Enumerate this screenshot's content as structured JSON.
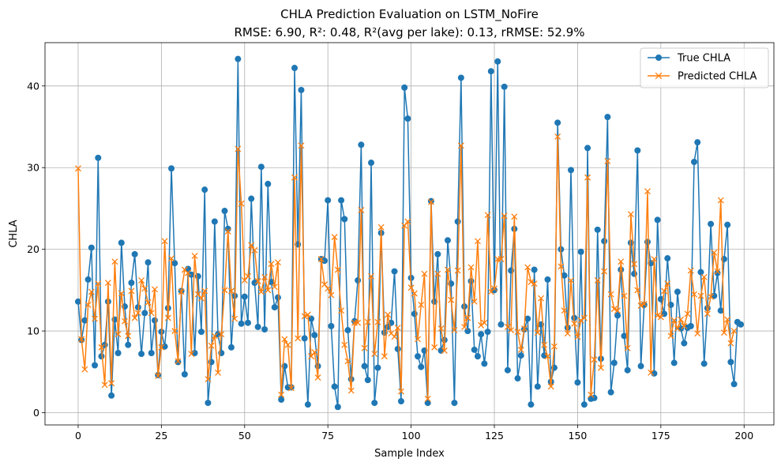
{
  "chart_data": {
    "type": "line",
    "title": "CHLA Prediction Evaluation on LSTM_NoFire",
    "subtitle": "RMSE: 6.90, R²: 0.48, R²(avg per lake): 0.13, rRMSE: 52.9%",
    "xlabel": "Sample Index",
    "ylabel": "CHLA",
    "xlim": [
      -9.95,
      208.95
    ],
    "ylim": [
      -1.5,
      45.3
    ],
    "xticks": [
      0,
      25,
      50,
      75,
      100,
      125,
      150,
      175,
      200
    ],
    "yticks": [
      0,
      10,
      20,
      30,
      40
    ],
    "grid": true,
    "legend_position": "upper right",
    "colors": {
      "true": "#1f77b4",
      "pred": "#ff7f0e"
    },
    "series": [
      {
        "name": "True CHLA",
        "marker": "circle",
        "values": [
          13.6,
          8.9,
          11.3,
          16.3,
          20.2,
          5.8,
          31.2,
          6.9,
          8.3,
          13.6,
          2.1,
          11.4,
          7.3,
          20.8,
          13.0,
          8.3,
          15.9,
          19.4,
          12.9,
          7.2,
          12.2,
          18.4,
          7.3,
          11.3,
          4.6,
          9.9,
          8.1,
          12.8,
          29.9,
          18.3,
          6.2,
          14.9,
          4.7,
          17.6,
          16.9,
          7.3,
          16.7,
          9.9,
          27.3,
          1.2,
          6.2,
          23.4,
          9.6,
          7.3,
          24.7,
          22.5,
          8.0,
          14.3,
          43.3,
          10.9,
          14.2,
          11.0,
          26.2,
          15.9,
          10.5,
          30.1,
          10.2,
          28.0,
          16.0,
          12.9,
          14.1,
          1.6,
          5.7,
          3.1,
          3.1,
          42.2,
          20.6,
          39.5,
          9.1,
          1.0,
          11.5,
          9.5,
          5.7,
          18.8,
          18.6,
          26.0,
          10.6,
          3.2,
          0.7,
          26.0,
          23.7,
          10.1,
          4.1,
          11.2,
          16.2,
          32.8,
          5.7,
          4.0,
          30.6,
          1.2,
          5.5,
          22.0,
          9.8,
          10.5,
          11.0,
          17.3,
          7.8,
          1.4,
          39.8,
          36.0,
          16.5,
          12.1,
          6.9,
          5.6,
          7.6,
          1.2,
          25.9,
          13.6,
          19.4,
          7.6,
          8.9,
          21.1,
          15.8,
          1.2,
          23.4,
          41.0,
          13.0,
          10.0,
          16.1,
          7.7,
          6.9,
          9.6,
          6.0,
          9.9,
          41.8,
          15.0,
          43.0,
          10.8,
          39.9,
          5.2,
          17.4,
          22.5,
          4.2,
          7.0,
          10.2,
          11.5,
          1.0,
          17.5,
          3.2,
          10.8,
          7.0,
          16.3,
          3.8,
          5.5,
          35.5,
          20.0,
          16.8,
          10.4,
          29.7,
          11.6,
          3.7,
          19.7,
          1.0,
          32.4,
          1.7,
          1.8,
          22.4,
          6.6,
          21.0,
          36.2,
          2.5,
          6.1,
          11.9,
          17.5,
          9.4,
          5.2,
          20.8,
          17.0,
          32.1,
          5.7,
          13.2,
          20.9,
          18.3,
          4.8,
          23.6,
          13.9,
          12.1,
          18.9,
          13.2,
          6.1,
          14.8,
          10.3,
          8.5,
          10.4,
          10.6,
          30.7,
          33.1,
          17.2,
          6.0,
          12.8,
          23.1,
          14.3,
          17.1,
          12.5,
          18.8,
          23.0,
          6.2,
          3.5,
          11.1,
          10.8
        ]
      },
      {
        "name": "Predicted CHLA",
        "marker": "x",
        "values": [
          29.9,
          9.0,
          5.3,
          13.2,
          14.8,
          11.5,
          15.8,
          8.0,
          3.4,
          15.9,
          3.6,
          18.5,
          9.6,
          14.6,
          11.2,
          9.4,
          14.9,
          11.6,
          12.2,
          16.2,
          15.2,
          13.5,
          12.2,
          15.1,
          4.5,
          8.0,
          21.0,
          11.6,
          18.9,
          10.0,
          6.3,
          14.8,
          17.5,
          17.1,
          7.2,
          19.2,
          14.5,
          14.0,
          14.9,
          4.1,
          8.2,
          9.4,
          4.9,
          9.6,
          15.0,
          22.2,
          14.9,
          11.5,
          32.3,
          25.6,
          16.2,
          16.7,
          20.5,
          19.9,
          16.1,
          14.8,
          16.6,
          15.0,
          18.2,
          15.4,
          18.4,
          2.2,
          9.0,
          8.3,
          3.0,
          28.8,
          9.1,
          32.7,
          11.8,
          12.0,
          6.9,
          7.4,
          4.3,
          18.8,
          15.7,
          15.2,
          14.4,
          21.5,
          17.5,
          12.5,
          8.3,
          6.3,
          2.7,
          11.0,
          11.0,
          24.8,
          7.9,
          11.1,
          16.7,
          7.2,
          11.1,
          22.7,
          6.9,
          12.0,
          9.7,
          9.3,
          10.4,
          2.6,
          22.9,
          23.4,
          15.3,
          14.6,
          9.0,
          13.2,
          17.0,
          1.7,
          25.8,
          8.0,
          17.0,
          10.3,
          7.6,
          17.5,
          13.8,
          10.1,
          17.4,
          32.7,
          10.5,
          11.6,
          17.8,
          13.6,
          21.0,
          10.7,
          11.0,
          24.2,
          14.8,
          15.2,
          18.8,
          18.8,
          24.1,
          10.5,
          10.1,
          24.0,
          9.9,
          7.7,
          10.3,
          17.8,
          16.0,
          15.8,
          9.8,
          14.0,
          8.3,
          6.9,
          3.2,
          8.1,
          33.8,
          17.9,
          12.5,
          9.7,
          16.2,
          10.9,
          9.3,
          11.3,
          11.6,
          28.8,
          2.2,
          6.5,
          16.2,
          5.5,
          17.3,
          30.8,
          14.5,
          12.7,
          12.5,
          18.5,
          14.3,
          7.9,
          24.3,
          18.2,
          15.0,
          13.1,
          13.3,
          27.1,
          4.9,
          18.8,
          11.9,
          11.7,
          14.9,
          15.8,
          9.4,
          11.3,
          10.3,
          11.4,
          10.6,
          12.1,
          17.4,
          14.5,
          9.7,
          14.3,
          16.6,
          12.1,
          14.2,
          19.6,
          17.3,
          26.0,
          9.8,
          11.4,
          8.5,
          10.0
        ]
      }
    ]
  }
}
